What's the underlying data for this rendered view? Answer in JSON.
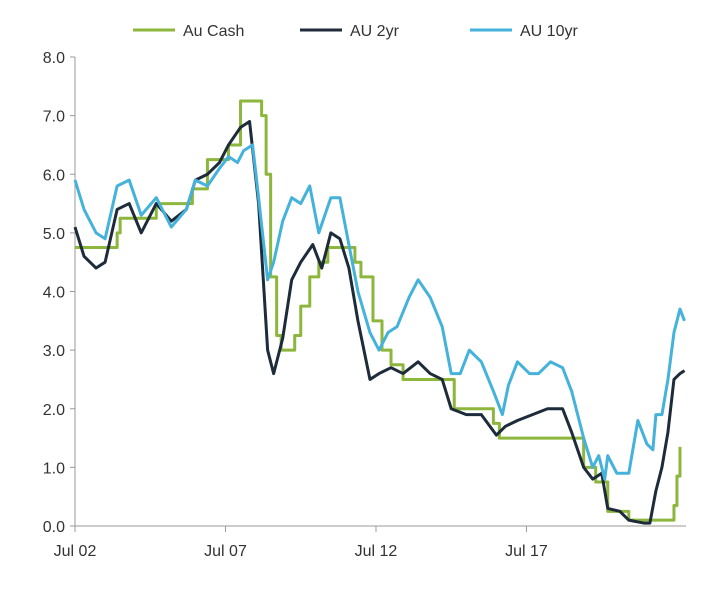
{
  "chart_data": {
    "type": "line",
    "title": "",
    "xlabel": "",
    "ylabel": "",
    "ylim": [
      0,
      8
    ],
    "yticks": [
      "0.0",
      "1.0",
      "2.0",
      "3.0",
      "4.0",
      "5.0",
      "6.0",
      "7.0",
      "8.0"
    ],
    "xticks": [
      {
        "label": "Jul 02",
        "x": 2002.5
      },
      {
        "label": "Jul 07",
        "x": 2007.5
      },
      {
        "label": "Jul 12",
        "x": 2012.5
      },
      {
        "label": "Jul 17",
        "x": 2017.5
      }
    ],
    "xlim": [
      2002.5,
      2022.8
    ],
    "legend": "top",
    "colors": {
      "cash": "#8cb63c",
      "y2": "#1d2b3a",
      "y10": "#45b2db"
    },
    "series": [
      {
        "name": "Au Cash",
        "key": "cash",
        "step": true,
        "points": [
          [
            2002.5,
            4.75
          ],
          [
            2003.9,
            5.0
          ],
          [
            2004.0,
            5.25
          ],
          [
            2005.2,
            5.5
          ],
          [
            2006.4,
            5.75
          ],
          [
            2006.9,
            6.25
          ],
          [
            2007.6,
            6.5
          ],
          [
            2008.0,
            7.25
          ],
          [
            2008.7,
            7.0
          ],
          [
            2008.85,
            6.0
          ],
          [
            2009.0,
            4.25
          ],
          [
            2009.2,
            3.25
          ],
          [
            2009.35,
            3.0
          ],
          [
            2009.8,
            3.25
          ],
          [
            2010.0,
            3.75
          ],
          [
            2010.3,
            4.25
          ],
          [
            2010.6,
            4.5
          ],
          [
            2010.9,
            4.75
          ],
          [
            2011.8,
            4.5
          ],
          [
            2012.0,
            4.25
          ],
          [
            2012.4,
            3.5
          ],
          [
            2012.7,
            3.0
          ],
          [
            2013.0,
            2.75
          ],
          [
            2013.4,
            2.5
          ],
          [
            2015.1,
            2.0
          ],
          [
            2016.4,
            1.75
          ],
          [
            2016.6,
            1.5
          ],
          [
            2019.4,
            1.0
          ],
          [
            2019.8,
            0.75
          ],
          [
            2020.2,
            0.25
          ],
          [
            2020.9,
            0.1
          ],
          [
            2022.4,
            0.35
          ],
          [
            2022.5,
            0.85
          ],
          [
            2022.6,
            1.35
          ]
        ]
      },
      {
        "name": "AU 2yr",
        "key": "y2",
        "points": [
          [
            2002.5,
            5.1
          ],
          [
            2002.8,
            4.6
          ],
          [
            2003.2,
            4.4
          ],
          [
            2003.5,
            4.5
          ],
          [
            2003.9,
            5.4
          ],
          [
            2004.3,
            5.5
          ],
          [
            2004.7,
            5.0
          ],
          [
            2005.2,
            5.5
          ],
          [
            2005.7,
            5.2
          ],
          [
            2006.2,
            5.4
          ],
          [
            2006.5,
            5.9
          ],
          [
            2006.9,
            6.0
          ],
          [
            2007.3,
            6.2
          ],
          [
            2007.6,
            6.5
          ],
          [
            2008.0,
            6.8
          ],
          [
            2008.3,
            6.9
          ],
          [
            2008.6,
            5.5
          ],
          [
            2008.9,
            3.0
          ],
          [
            2009.1,
            2.6
          ],
          [
            2009.4,
            3.2
          ],
          [
            2009.7,
            4.2
          ],
          [
            2010.0,
            4.5
          ],
          [
            2010.4,
            4.8
          ],
          [
            2010.7,
            4.4
          ],
          [
            2011.0,
            5.0
          ],
          [
            2011.3,
            4.9
          ],
          [
            2011.6,
            4.4
          ],
          [
            2011.9,
            3.5
          ],
          [
            2012.3,
            2.5
          ],
          [
            2012.6,
            2.6
          ],
          [
            2013.0,
            2.7
          ],
          [
            2013.4,
            2.6
          ],
          [
            2013.9,
            2.8
          ],
          [
            2014.3,
            2.6
          ],
          [
            2014.7,
            2.5
          ],
          [
            2015.0,
            2.0
          ],
          [
            2015.5,
            1.9
          ],
          [
            2016.0,
            1.9
          ],
          [
            2016.5,
            1.55
          ],
          [
            2016.8,
            1.7
          ],
          [
            2017.2,
            1.8
          ],
          [
            2017.7,
            1.9
          ],
          [
            2018.2,
            2.0
          ],
          [
            2018.7,
            2.0
          ],
          [
            2019.0,
            1.6
          ],
          [
            2019.4,
            1.0
          ],
          [
            2019.7,
            0.8
          ],
          [
            2020.0,
            0.9
          ],
          [
            2020.2,
            0.3
          ],
          [
            2020.6,
            0.25
          ],
          [
            2020.9,
            0.1
          ],
          [
            2021.4,
            0.05
          ],
          [
            2021.6,
            0.05
          ],
          [
            2021.8,
            0.6
          ],
          [
            2022.0,
            1.0
          ],
          [
            2022.2,
            1.6
          ],
          [
            2022.4,
            2.5
          ],
          [
            2022.6,
            2.6
          ],
          [
            2022.75,
            2.65
          ]
        ]
      },
      {
        "name": "AU 10yr",
        "key": "y10",
        "points": [
          [
            2002.5,
            5.9
          ],
          [
            2002.8,
            5.4
          ],
          [
            2003.2,
            5.0
          ],
          [
            2003.5,
            4.9
          ],
          [
            2003.9,
            5.8
          ],
          [
            2004.3,
            5.9
          ],
          [
            2004.7,
            5.3
          ],
          [
            2005.2,
            5.6
          ],
          [
            2005.7,
            5.1
          ],
          [
            2006.2,
            5.4
          ],
          [
            2006.5,
            5.9
          ],
          [
            2006.9,
            5.8
          ],
          [
            2007.3,
            6.1
          ],
          [
            2007.6,
            6.3
          ],
          [
            2007.9,
            6.2
          ],
          [
            2008.1,
            6.4
          ],
          [
            2008.4,
            6.5
          ],
          [
            2008.6,
            5.6
          ],
          [
            2008.9,
            4.2
          ],
          [
            2009.1,
            4.5
          ],
          [
            2009.4,
            5.2
          ],
          [
            2009.7,
            5.6
          ],
          [
            2010.0,
            5.5
          ],
          [
            2010.3,
            5.8
          ],
          [
            2010.6,
            5.0
          ],
          [
            2011.0,
            5.6
          ],
          [
            2011.3,
            5.6
          ],
          [
            2011.6,
            4.8
          ],
          [
            2011.9,
            4.0
          ],
          [
            2012.3,
            3.3
          ],
          [
            2012.6,
            3.0
          ],
          [
            2012.9,
            3.3
          ],
          [
            2013.2,
            3.4
          ],
          [
            2013.6,
            3.9
          ],
          [
            2013.9,
            4.2
          ],
          [
            2014.3,
            3.9
          ],
          [
            2014.7,
            3.4
          ],
          [
            2015.0,
            2.6
          ],
          [
            2015.3,
            2.6
          ],
          [
            2015.6,
            3.0
          ],
          [
            2016.0,
            2.8
          ],
          [
            2016.4,
            2.3
          ],
          [
            2016.7,
            1.9
          ],
          [
            2016.9,
            2.4
          ],
          [
            2017.2,
            2.8
          ],
          [
            2017.6,
            2.6
          ],
          [
            2017.9,
            2.6
          ],
          [
            2018.3,
            2.8
          ],
          [
            2018.7,
            2.7
          ],
          [
            2019.0,
            2.3
          ],
          [
            2019.4,
            1.5
          ],
          [
            2019.7,
            1.0
          ],
          [
            2019.9,
            1.2
          ],
          [
            2020.1,
            0.8
          ],
          [
            2020.2,
            1.2
          ],
          [
            2020.5,
            0.9
          ],
          [
            2020.9,
            0.9
          ],
          [
            2021.2,
            1.8
          ],
          [
            2021.5,
            1.4
          ],
          [
            2021.7,
            1.3
          ],
          [
            2021.8,
            1.9
          ],
          [
            2022.0,
            1.9
          ],
          [
            2022.2,
            2.5
          ],
          [
            2022.4,
            3.3
          ],
          [
            2022.6,
            3.7
          ],
          [
            2022.75,
            3.5
          ]
        ]
      }
    ]
  }
}
